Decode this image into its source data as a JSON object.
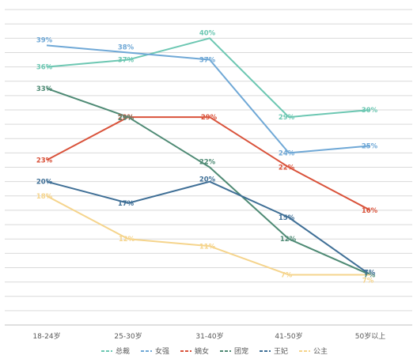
{
  "chart_data": {
    "type": "line",
    "categories": [
      "18-24岁",
      "25-30岁",
      "31-40岁",
      "41-50岁",
      "50岁以上"
    ],
    "ylim": [
      0,
      45
    ],
    "grid": true,
    "legend_position": "bottom",
    "value_suffix": "%",
    "series": [
      {
        "name": "总裁",
        "color": "#6cc7b2",
        "values": [
          36,
          37,
          40,
          29,
          30
        ]
      },
      {
        "name": "女强",
        "color": "#6fa8d6",
        "values": [
          39,
          38,
          37,
          24,
          25
        ]
      },
      {
        "name": "嫡女",
        "color": "#d9523a",
        "values": [
          23,
          29,
          29,
          22,
          16
        ]
      },
      {
        "name": "团宠",
        "color": "#4e8a74",
        "values": [
          33,
          29,
          22,
          12,
          7
        ]
      },
      {
        "name": "王妃",
        "color": "#3f6f96",
        "values": [
          20,
          17,
          20,
          15,
          7
        ]
      },
      {
        "name": "公主",
        "color": "#f5d48c",
        "values": [
          18,
          12,
          11,
          7,
          7
        ]
      }
    ]
  }
}
